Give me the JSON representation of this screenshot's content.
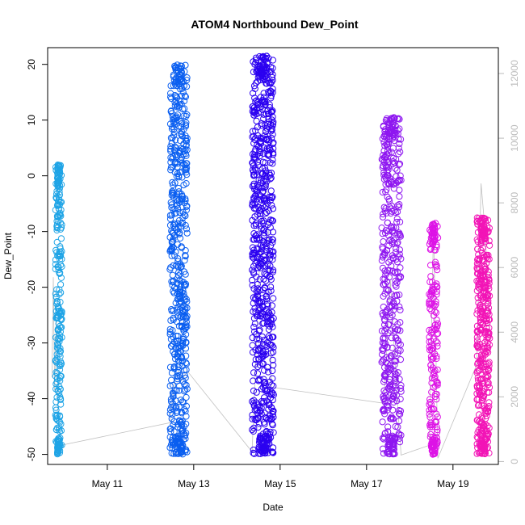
{
  "chart_data": {
    "type": "scatter",
    "title": "ATOM4 Northbound Dew_Point",
    "xlabel": "Date",
    "ylabel": "Dew_Point",
    "x_ticks": [
      {
        "day": 11,
        "label": "May 11"
      },
      {
        "day": 13,
        "label": "May 13"
      },
      {
        "day": 15,
        "label": "May 15"
      },
      {
        "day": 17,
        "label": "May 17"
      },
      {
        "day": 19,
        "label": "May 19"
      }
    ],
    "xlim_days": [
      9.62,
      20.05
    ],
    "ylim": [
      -51.8,
      23.0
    ],
    "y_ticks": [
      -50,
      -40,
      -30,
      -20,
      -10,
      0,
      10,
      20
    ],
    "y2lim": [
      -90,
      12800
    ],
    "y2_ticks": [
      0,
      2000,
      4000,
      6000,
      8000,
      10000,
      12000
    ],
    "series": [
      {
        "color": "#1fa4e6",
        "x_range": [
          9.8,
          9.95
        ],
        "y_min": -50,
        "y_max": 2,
        "count": 220
      },
      {
        "color": "#0a5ef0",
        "x_range": [
          12.45,
          12.85
        ],
        "y_min": -50,
        "y_max": 20,
        "count": 520
      },
      {
        "color": "#2b00f0",
        "x_range": [
          14.35,
          14.85
        ],
        "y_min": -50,
        "y_max": 21.5,
        "count": 650
      },
      {
        "color": "#8e17f0",
        "x_range": [
          17.35,
          17.8
        ],
        "y_min": -50,
        "y_max": 10.5,
        "count": 420
      },
      {
        "color": "#dd13e6",
        "x_range": [
          18.45,
          18.65
        ],
        "y_min": -50,
        "y_max": -8.5,
        "count": 160
      },
      {
        "color": "#f214b6",
        "x_range": [
          19.55,
          19.85
        ],
        "y_min": -50,
        "y_max": -7.5,
        "count": 380
      }
    ],
    "secondary_line": {
      "color": "#c0c0c0",
      "points": [
        [
          9.72,
          2600
        ],
        [
          9.75,
          5700
        ],
        [
          9.78,
          2200
        ],
        [
          9.82,
          4400
        ],
        [
          9.86,
          1500
        ],
        [
          9.92,
          500
        ],
        [
          12.45,
          1200
        ],
        [
          12.6,
          3000
        ],
        [
          12.72,
          2500
        ],
        [
          12.85,
          2800
        ],
        [
          14.35,
          300
        ],
        [
          14.55,
          7000
        ],
        [
          14.7,
          9000
        ],
        [
          14.8,
          2300
        ],
        [
          17.4,
          1800
        ],
        [
          17.55,
          5600
        ],
        [
          17.7,
          2100
        ],
        [
          17.8,
          200
        ],
        [
          18.45,
          500
        ],
        [
          18.55,
          7300
        ],
        [
          18.65,
          100
        ],
        [
          19.55,
          3000
        ],
        [
          19.65,
          8600
        ],
        [
          19.75,
          7000
        ],
        [
          19.85,
          3800
        ]
      ]
    },
    "grid": false,
    "legend": "none"
  }
}
